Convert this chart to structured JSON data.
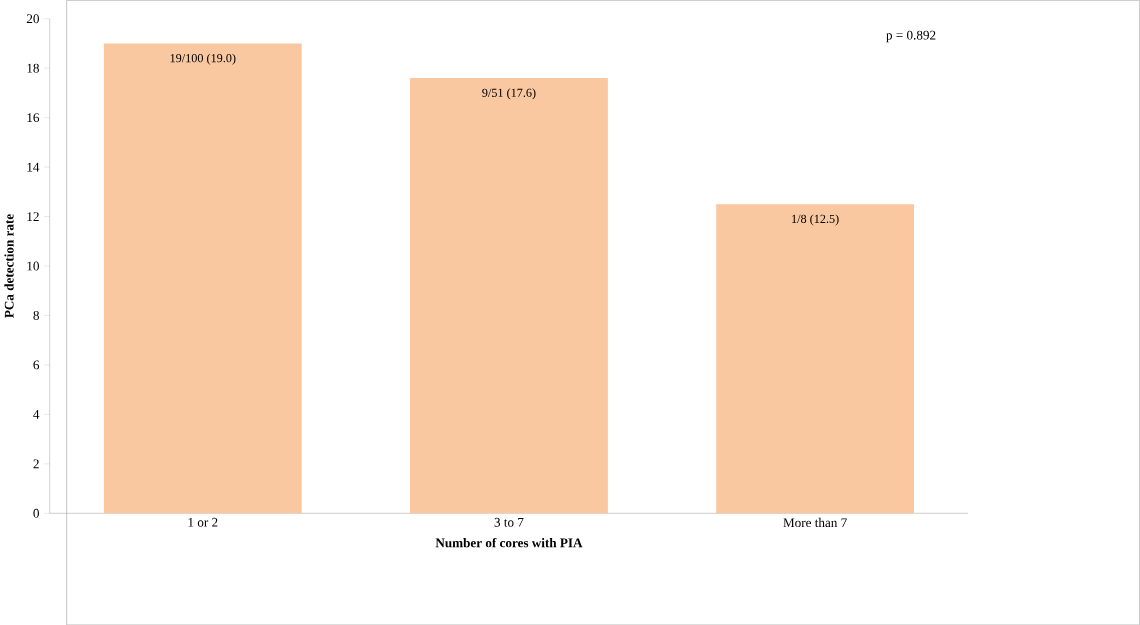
{
  "chart_data": {
    "type": "bar",
    "xlabel": "Number of cores with PIA",
    "ylabel": "PCa detection rate",
    "categories": [
      "1 or 2",
      "3 to 7",
      "More than 7"
    ],
    "values": [
      19.0,
      17.6,
      12.5
    ],
    "value_labels": [
      "19/100 (19.0)",
      "9/51 (17.6)",
      "1/8 (12.5)"
    ],
    "color": "#fac8a0",
    "ylim": [
      0,
      20
    ],
    "yticks": [
      0,
      2,
      4,
      6,
      8,
      10,
      12,
      14,
      16,
      18,
      20
    ],
    "annotations": [
      "p = 0.892"
    ]
  }
}
